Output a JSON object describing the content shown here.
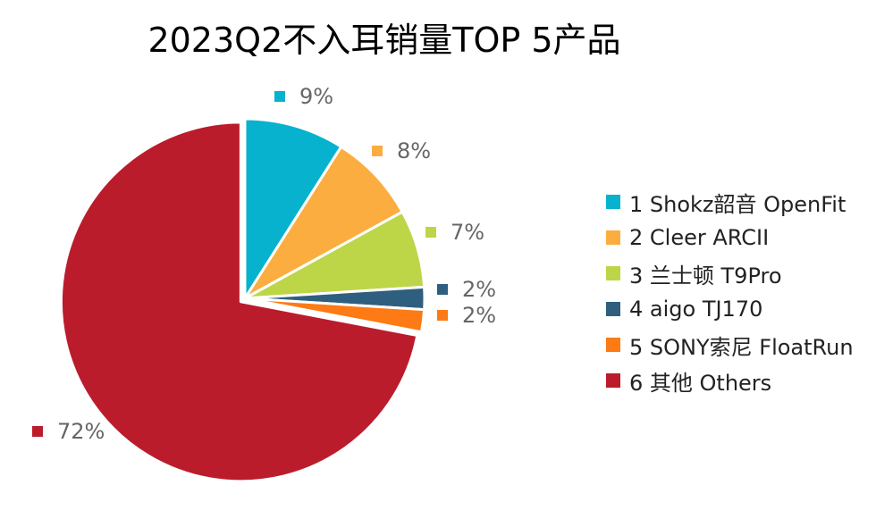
{
  "chart_data": {
    "type": "pie",
    "title": "2023Q2不入耳销量TOP 5产品",
    "categories": [
      "1 Shokz韶音 OpenFit",
      "2 Cleer ARCII",
      "3 兰士顿 T9Pro",
      "4 aigo TJ170",
      "5 SONY索尼 FloatRun",
      "6 其他 Others"
    ],
    "values": [
      9,
      8,
      7,
      2,
      2,
      72
    ],
    "labels": [
      "9%",
      "8%",
      "7%",
      "2%",
      "2%",
      "72%"
    ],
    "colors": [
      "#06b2ce",
      "#fbad3f",
      "#bcd648",
      "#2e5f7f",
      "#fd7a14",
      "#bb1c2c"
    ],
    "exploded_index": 5,
    "legend_position": "right"
  }
}
